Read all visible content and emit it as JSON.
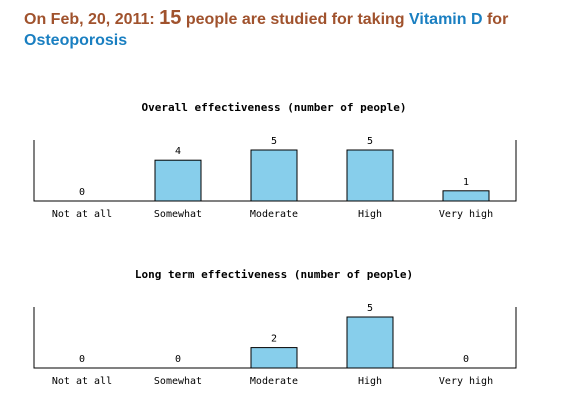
{
  "header": {
    "date_prefix": "On Feb, 20, 2011: ",
    "count": "15",
    "middle": " people are studied for taking ",
    "drug": "Vitamin D",
    "for_word": " for",
    "condition": "Osteoporosis"
  },
  "colors": {
    "header_text": "#a0522d",
    "link": "#1a7fc1",
    "bar_fill": "#87ceeb"
  },
  "chart_data": [
    {
      "type": "bar",
      "title": "Overall effectiveness (number of people)",
      "categories": [
        "Not at all",
        "Somewhat",
        "Moderate",
        "High",
        "Very high"
      ],
      "values": [
        0,
        4,
        5,
        5,
        1
      ],
      "xlabel": "",
      "ylabel": "",
      "ylim": [
        0,
        5
      ],
      "grid": false
    },
    {
      "type": "bar",
      "title": "Long term effectiveness (number of people)",
      "categories": [
        "Not at all",
        "Somewhat",
        "Moderate",
        "High",
        "Very high"
      ],
      "values": [
        0,
        0,
        2,
        5,
        0
      ],
      "xlabel": "",
      "ylabel": "",
      "ylim": [
        0,
        5
      ],
      "grid": false
    }
  ]
}
